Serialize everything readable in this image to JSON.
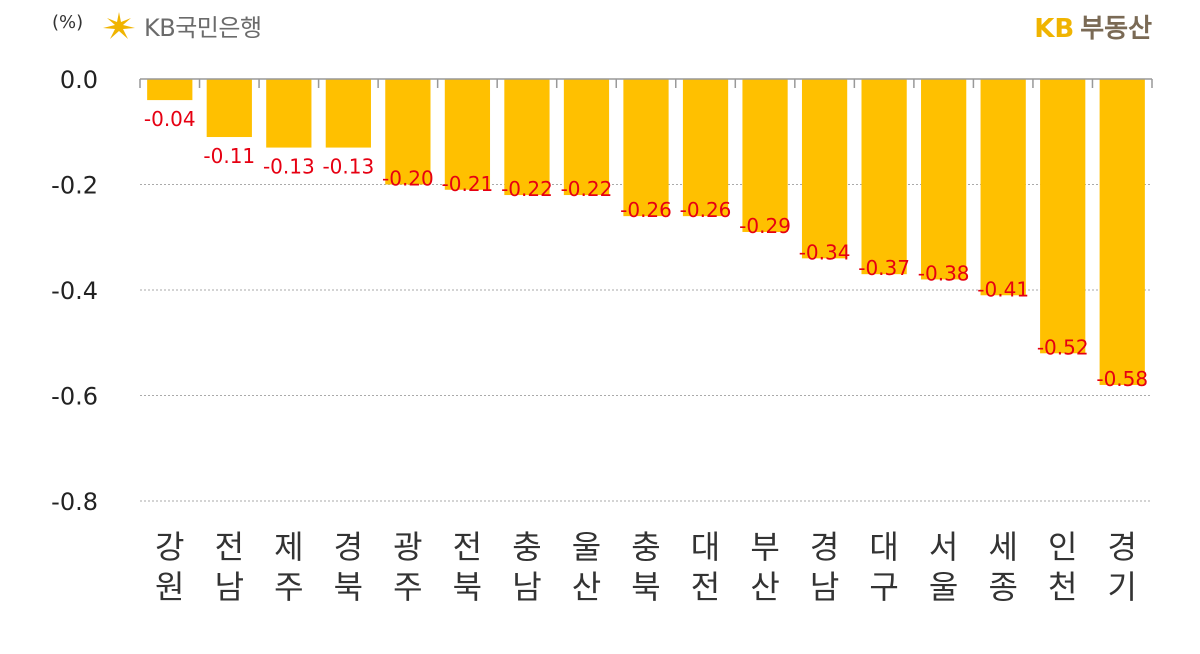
{
  "header": {
    "unit_label": "(%)",
    "brand_name": "KB국민은행",
    "product_kb": "KB",
    "product_name": "부동산"
  },
  "chart_data": {
    "type": "bar",
    "categories": [
      [
        "강",
        "원"
      ],
      [
        "전",
        "남"
      ],
      [
        "제",
        "주"
      ],
      [
        "경",
        "북"
      ],
      [
        "광",
        "주"
      ],
      [
        "전",
        "북"
      ],
      [
        "충",
        "남"
      ],
      [
        "울",
        "산"
      ],
      [
        "충",
        "북"
      ],
      [
        "대",
        "전"
      ],
      [
        "부",
        "산"
      ],
      [
        "경",
        "남"
      ],
      [
        "대",
        "구"
      ],
      [
        "서",
        "울"
      ],
      [
        "세",
        "종"
      ],
      [
        "인",
        "천"
      ],
      [
        "경",
        "기"
      ]
    ],
    "values": [
      -0.04,
      -0.11,
      -0.13,
      -0.13,
      -0.2,
      -0.21,
      -0.22,
      -0.22,
      -0.26,
      -0.26,
      -0.29,
      -0.34,
      -0.37,
      -0.38,
      -0.41,
      -0.52,
      -0.58
    ],
    "value_labels": [
      "-0.04",
      "-0.11",
      "-0.13",
      "-0.13",
      "-0.20",
      "-0.21",
      "-0.22",
      "-0.22",
      "-0.26",
      "-0.26",
      "-0.29",
      "-0.34",
      "-0.37",
      "-0.38",
      "-0.41",
      "-0.52",
      "-0.58"
    ],
    "ylim": [
      -0.8,
      0.0
    ],
    "yticks": [
      0.0,
      -0.2,
      -0.4,
      -0.6,
      -0.8
    ],
    "ytick_labels": [
      "0.0",
      "-0.2",
      "-0.4",
      "-0.6",
      "-0.8"
    ],
    "grid": true,
    "bar_color": "#FFC000",
    "label_color": "#E60012",
    "axis_color": "#999999"
  }
}
